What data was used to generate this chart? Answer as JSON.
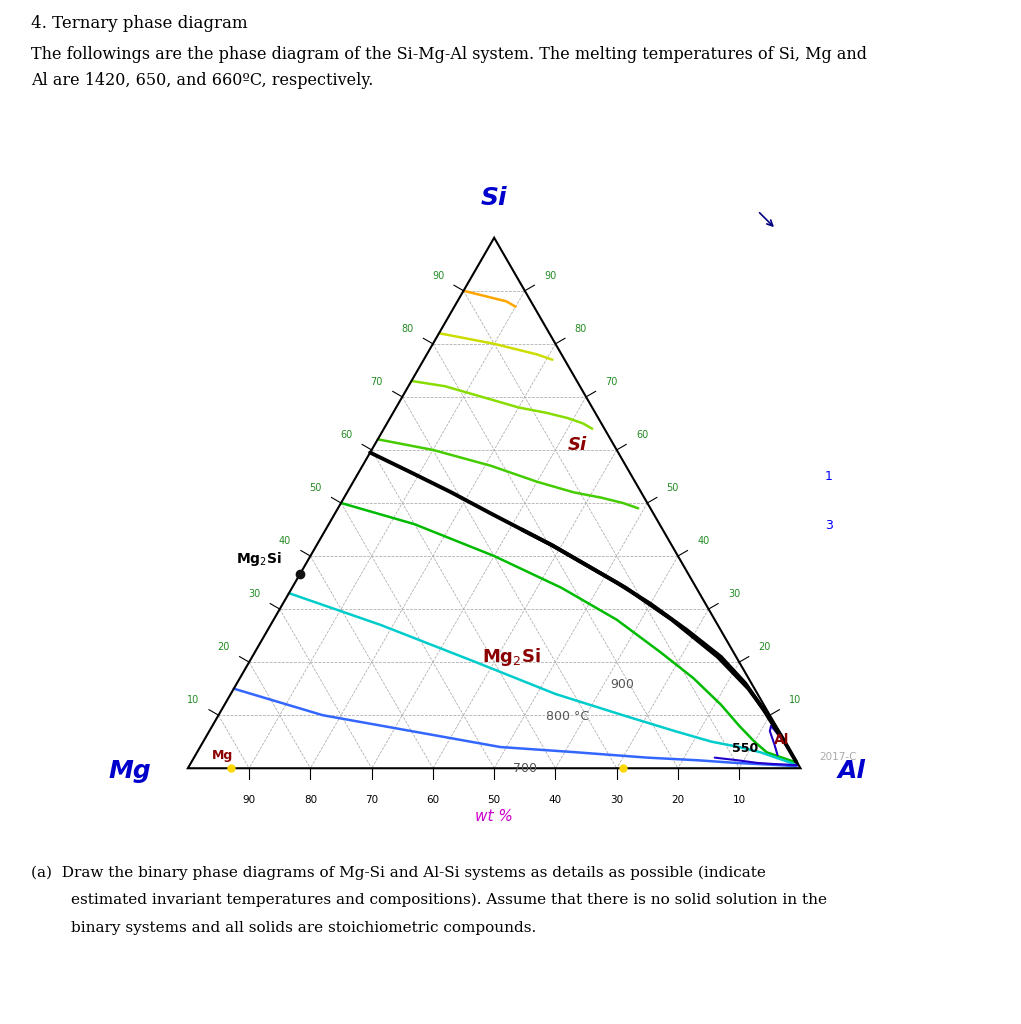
{
  "title_heading": "4. Ternary phase diagram",
  "description_line1": "The followings are the phase diagram of the Si-Mg-Al system. The melting temperatures of Si, Mg and",
  "description_line2": "Al are 1420, 650, and 660ºC, respectively.",
  "label_Si_color": "#0000cc",
  "label_Mg_color": "#0000cc",
  "label_Al_color": "#0000cc",
  "phase_color": "#8b0000",
  "grid_color": "#aaaaaa",
  "tick_color_green": "#228B22",
  "copyright": "2017-C",
  "wt_pct_color": "#cc00cc",
  "question": "(a)  Draw the binary phase diagrams of Mg-Si and Al-Si systems as details as possible (indicate\n      estimated invariant temperatures and compositions). Assume that there is no solid solution in the\n      binary systems and all solids are stoichiometric compounds."
}
